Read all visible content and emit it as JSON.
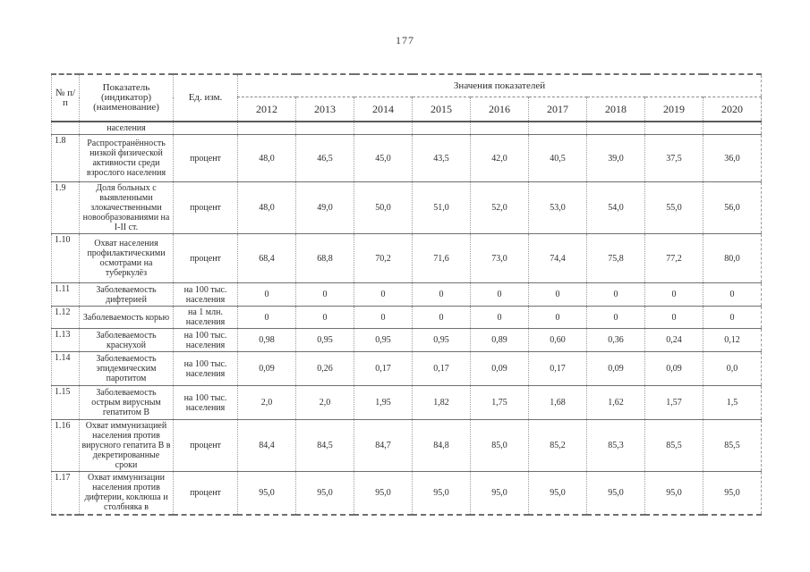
{
  "page": {
    "number": "177"
  },
  "table": {
    "header": {
      "col_num": "№ п/п",
      "col_indicator": "Показатель (индикатор) (наименование)",
      "col_unit": "Ед. изм.",
      "col_values": "Значения показателей",
      "years": [
        "2012",
        "2013",
        "2014",
        "2015",
        "2016",
        "2017",
        "2018",
        "2019",
        "2020"
      ]
    },
    "rows": [
      {
        "num": "",
        "indicator": "населения",
        "unit": "",
        "values": [
          "",
          "",
          "",
          "",
          "",
          "",
          "",
          "",
          ""
        ]
      },
      {
        "num": "1.8",
        "indicator": "Распространённость низкой физической активности среди взрослого населения",
        "unit": "процент",
        "values": [
          "48,0",
          "46,5",
          "45,0",
          "43,5",
          "42,0",
          "40,5",
          "39,0",
          "37,5",
          "36,0"
        ]
      },
      {
        "num": "1.9",
        "indicator": "Доля больных с выявленными злокачественными новообразованиями на I-II ст.",
        "unit": "процент",
        "values": [
          "48,0",
          "49,0",
          "50,0",
          "51,0",
          "52,0",
          "53,0",
          "54,0",
          "55,0",
          "56,0"
        ]
      },
      {
        "num": "1.10",
        "indicator": "Охват населения профилактическими осмотрами на туберкулёз",
        "unit": "процент",
        "values": [
          "68,4",
          "68,8",
          "70,2",
          "71,6",
          "73,0",
          "74,4",
          "75,8",
          "77,2",
          "80,0"
        ]
      },
      {
        "num": "1.11",
        "indicator": "Заболеваемость дифтерией",
        "unit": "на 100 тыс. населения",
        "values": [
          "0",
          "0",
          "0",
          "0",
          "0",
          "0",
          "0",
          "0",
          "0"
        ]
      },
      {
        "num": "1.12",
        "indicator": "Заболеваемость корью",
        "unit": "на 1 млн. населения",
        "values": [
          "0",
          "0",
          "0",
          "0",
          "0",
          "0",
          "0",
          "0",
          "0"
        ]
      },
      {
        "num": "1.13",
        "indicator": "Заболеваемость краснухой",
        "unit": "на 100 тыс. населения",
        "values": [
          "0,98",
          "0,95",
          "0,95",
          "0,95",
          "0,89",
          "0,60",
          "0,36",
          "0,24",
          "0,12"
        ]
      },
      {
        "num": "1.14",
        "indicator": "Заболеваемость эпидемическим паротитом",
        "unit": "на 100 тыс. населения",
        "values": [
          "0,09",
          "0,26",
          "0,17",
          "0,17",
          "0,09",
          "0,17",
          "0,09",
          "0,09",
          "0,0"
        ]
      },
      {
        "num": "1.15",
        "indicator": "Заболеваемость острым вирусным гепатитом B",
        "unit": "на 100 тыс. населения",
        "values": [
          "2,0",
          "2,0",
          "1,95",
          "1,82",
          "1,75",
          "1,68",
          "1,62",
          "1,57",
          "1,5"
        ]
      },
      {
        "num": "1.16",
        "indicator": "Охват иммунизацией населения против вирусного гепатита B в декретированные сроки",
        "unit": "процент",
        "values": [
          "84,4",
          "84,5",
          "84,7",
          "84,8",
          "85,0",
          "85,2",
          "85,3",
          "85,5",
          "85,5"
        ]
      },
      {
        "num": "1.17",
        "indicator": "Охват иммунизации населения против дифтерии, коклюша и столбняка в",
        "unit": "процент",
        "values": [
          "95,0",
          "95,0",
          "95,0",
          "95,0",
          "95,0",
          "95,0",
          "95,0",
          "95,0",
          "95,0"
        ]
      }
    ]
  }
}
